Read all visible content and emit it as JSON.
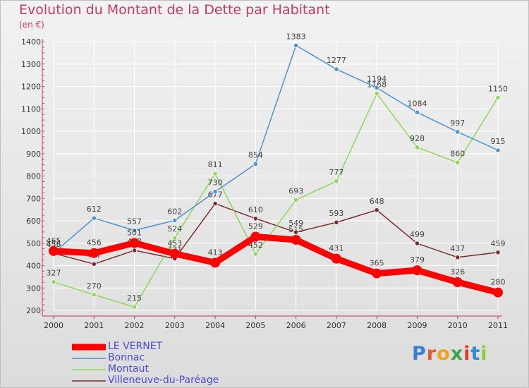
{
  "header": {
    "title": "Evolution du Montant de la Dette par Habitant",
    "unit": "(en €)"
  },
  "brand": {
    "text": "Proxiti",
    "letters": [
      "P",
      "r",
      "o",
      "x",
      "i",
      "t",
      "i"
    ],
    "colors": [
      "#3a7fd6",
      "#e35a2c",
      "#f0a21a",
      "#3aa64a",
      "#e8362a",
      "#2f8ad6",
      "#8ccb3a"
    ]
  },
  "chart_data": {
    "type": "line",
    "title": "Evolution du Montant de la Dette par Habitant",
    "subtitle": "(en €)",
    "xlabel": "",
    "ylabel": "",
    "x": [
      "2000",
      "2001",
      "2002",
      "2003",
      "2004",
      "2005",
      "2006",
      "2007",
      "2008",
      "2009",
      "2010",
      "2011"
    ],
    "ylim": [
      200,
      1400
    ],
    "yticks": [
      200,
      300,
      400,
      500,
      600,
      700,
      800,
      900,
      1000,
      1100,
      1200,
      1300,
      1400
    ],
    "grid": true,
    "legend": "bottom-left",
    "series": [
      {
        "name": "Villeneuve-du-Paréage",
        "color": "#7a2e2e",
        "values": [
          455,
          407,
          468,
          431,
          677,
          610,
          549,
          593,
          648,
          499,
          437,
          459
        ],
        "labels": [
          "455",
          "407",
          "468",
          "431",
          "677",
          "610",
          "549",
          "593",
          "648",
          "499",
          "437",
          "459"
        ]
      },
      {
        "name": "Montaut",
        "color": "#8ed858",
        "values": [
          327,
          270,
          215,
          524,
          811,
          452,
          693,
          777,
          1168,
          928,
          860,
          1150
        ],
        "labels": [
          "327",
          "270",
          "215",
          "524",
          "811",
          "452",
          "693",
          "777",
          "1168",
          "928",
          "860",
          "1150"
        ]
      },
      {
        "name": "Bonnac",
        "color": "#4f92d2",
        "values": [
          456,
          612,
          557,
          602,
          730,
          854,
          1383,
          1277,
          1194,
          1084,
          997,
          915
        ],
        "labels": [
          "456",
          "612",
          "557",
          "602",
          "730",
          "854",
          "1383",
          "1277",
          "1194",
          "1084",
          "997",
          "915"
        ]
      },
      {
        "name": "LE VERNET",
        "color": "#ff0000",
        "values": [
          465,
          456,
          501,
          453,
          413,
          529,
          515,
          431,
          365,
          379,
          326,
          280
        ],
        "labels": [
          "465",
          "456",
          "501",
          "453",
          "413",
          "529",
          "515",
          "431",
          "365",
          "379",
          "326",
          "280"
        ]
      }
    ]
  }
}
